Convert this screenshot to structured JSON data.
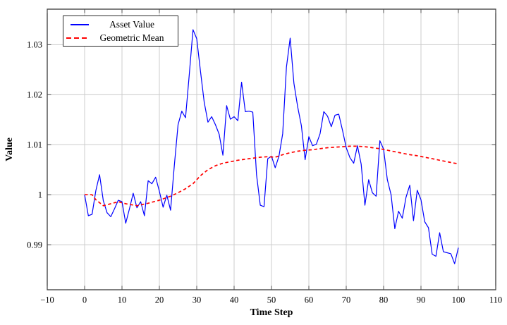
{
  "chart_data": {
    "type": "line",
    "title": "",
    "xlabel": "Time Step",
    "ylabel": "Value",
    "xlim": [
      -10,
      110
    ],
    "ylim": [
      0.981,
      1.0371
    ],
    "x_ticks": [
      -10,
      0,
      10,
      20,
      30,
      40,
      50,
      60,
      70,
      80,
      90,
      100,
      110
    ],
    "x_tick_labels": [
      "−10",
      "0",
      "10",
      "20",
      "30",
      "40",
      "50",
      "60",
      "70",
      "80",
      "90",
      "100",
      "110"
    ],
    "y_ticks": [
      0.99,
      1.0,
      1.01,
      1.02,
      1.03
    ],
    "y_tick_labels": [
      "0.99",
      "1",
      "1.01",
      "1.02",
      "1.03"
    ],
    "grid": true,
    "legend_position": "top-left",
    "colors": {
      "grid": "#cccccc",
      "border": "#2a2a2a",
      "tick": "#444444",
      "text": "#000000",
      "background": "#ffffff"
    },
    "series": [
      {
        "name": "Asset Value",
        "color": "#0000ff",
        "style": "solid",
        "line_width": 1.2,
        "x0": 0,
        "dx": 1,
        "values": [
          1.0,
          0.9958,
          0.9961,
          1.0008,
          1.004,
          0.9988,
          0.9964,
          0.9956,
          0.9972,
          0.9989,
          0.9986,
          0.9943,
          0.9972,
          1.0003,
          0.9974,
          0.9986,
          0.9958,
          1.0028,
          1.0022,
          1.0035,
          1.0007,
          0.9975,
          0.9999,
          0.9969,
          1.0058,
          1.014,
          1.0167,
          1.0154,
          1.024,
          1.033,
          1.0312,
          1.0247,
          1.0185,
          1.0145,
          1.0156,
          1.014,
          1.0121,
          1.0079,
          1.0178,
          1.0151,
          1.0156,
          1.0148,
          1.0225,
          1.0166,
          1.0167,
          1.0165,
          1.004,
          0.9979,
          0.9976,
          1.0072,
          1.0077,
          1.0054,
          1.0077,
          1.0122,
          1.0255,
          1.0313,
          1.0223,
          1.0176,
          1.0138,
          1.007,
          1.0116,
          1.0098,
          1.0101,
          1.0122,
          1.0166,
          1.0157,
          1.0136,
          1.0159,
          1.0161,
          1.0129,
          1.0094,
          1.0074,
          1.0063,
          1.0098,
          1.0061,
          0.9979,
          1.003,
          1.0004,
          0.9997,
          1.0108,
          1.0091,
          1.003,
          1.0,
          0.9932,
          0.9967,
          0.9953,
          0.9995,
          1.0019,
          0.9948,
          1.0009,
          0.999,
          0.9946,
          0.9934,
          0.9881,
          0.9877,
          0.9924,
          0.9886,
          0.9884,
          0.9882,
          0.9862,
          0.9894
        ]
      },
      {
        "name": "Geometric Mean",
        "color": "#ff0000",
        "style": "dashed",
        "line_width": 1.7,
        "points": [
          [
            0,
            1.0
          ],
          [
            2,
            1.0
          ],
          [
            3,
            0.999
          ],
          [
            5,
            0.9978
          ],
          [
            7,
            0.9982
          ],
          [
            9,
            0.9986
          ],
          [
            11,
            0.9982
          ],
          [
            14,
            0.9978
          ],
          [
            17,
            0.9983
          ],
          [
            20,
            0.9989
          ],
          [
            23,
            0.9997
          ],
          [
            25,
            1.0004
          ],
          [
            27,
            1.0012
          ],
          [
            29,
            1.0022
          ],
          [
            31,
            1.0038
          ],
          [
            33,
            1.005
          ],
          [
            35,
            1.0058
          ],
          [
            37,
            1.0063
          ],
          [
            39,
            1.0066
          ],
          [
            41,
            1.0069
          ],
          [
            43,
            1.0071
          ],
          [
            45,
            1.0073
          ],
          [
            47,
            1.0075
          ],
          [
            49,
            1.0076
          ],
          [
            51,
            1.0075
          ],
          [
            53,
            1.008
          ],
          [
            55,
            1.0084
          ],
          [
            57,
            1.0087
          ],
          [
            59,
            1.0089
          ],
          [
            61,
            1.009
          ],
          [
            63,
            1.0092
          ],
          [
            65,
            1.0094
          ],
          [
            67,
            1.0095
          ],
          [
            69,
            1.0096
          ],
          [
            71,
            1.0097
          ],
          [
            73,
            1.0097
          ],
          [
            75,
            1.0096
          ],
          [
            77,
            1.0094
          ],
          [
            79,
            1.0092
          ],
          [
            81,
            1.0089
          ],
          [
            83,
            1.0086
          ],
          [
            85,
            1.0083
          ],
          [
            87,
            1.008
          ],
          [
            89,
            1.0078
          ],
          [
            91,
            1.0075
          ],
          [
            93,
            1.0072
          ],
          [
            95,
            1.0069
          ],
          [
            97,
            1.0066
          ],
          [
            99,
            1.0063
          ],
          [
            100,
            1.0062
          ]
        ]
      }
    ]
  }
}
